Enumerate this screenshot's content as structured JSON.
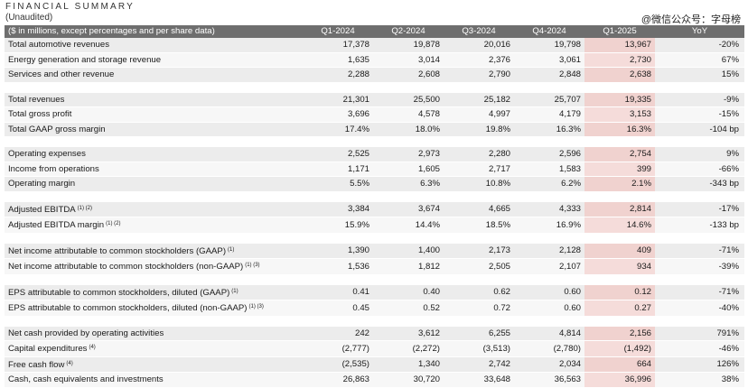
{
  "title": "FINANCIAL SUMMARY",
  "subtitle": "(Unaudited)",
  "watermark": "@微信公众号：字母榜",
  "header": [
    "($ in millions, except percentages and per share data)",
    "Q1-2024",
    "Q2-2024",
    "Q3-2024",
    "Q4-2024",
    "Q1-2025",
    "YoY"
  ],
  "groups": [
    [
      {
        "label": "Total automotive revenues",
        "sup": "",
        "values": [
          "17,378",
          "19,878",
          "20,016",
          "19,798",
          "13,967"
        ],
        "yoy": "-20%"
      },
      {
        "label": "Energy generation and storage revenue",
        "sup": "",
        "values": [
          "1,635",
          "3,014",
          "2,376",
          "3,061",
          "2,730"
        ],
        "yoy": "67%"
      },
      {
        "label": "Services and other revenue",
        "sup": "",
        "values": [
          "2,288",
          "2,608",
          "2,790",
          "2,848",
          "2,638"
        ],
        "yoy": "15%"
      }
    ],
    [
      {
        "label": "Total revenues",
        "sup": "",
        "values": [
          "21,301",
          "25,500",
          "25,182",
          "25,707",
          "19,335"
        ],
        "yoy": "-9%"
      },
      {
        "label": "Total gross profit",
        "sup": "",
        "values": [
          "3,696",
          "4,578",
          "4,997",
          "4,179",
          "3,153"
        ],
        "yoy": "-15%"
      },
      {
        "label": "Total GAAP gross margin",
        "sup": "",
        "values": [
          "17.4%",
          "18.0%",
          "19.8%",
          "16.3%",
          "16.3%"
        ],
        "yoy": "-104 bp"
      }
    ],
    [
      {
        "label": "Operating expenses",
        "sup": "",
        "values": [
          "2,525",
          "2,973",
          "2,280",
          "2,596",
          "2,754"
        ],
        "yoy": "9%"
      },
      {
        "label": "Income from operations",
        "sup": "",
        "values": [
          "1,171",
          "1,605",
          "2,717",
          "1,583",
          "399"
        ],
        "yoy": "-66%"
      },
      {
        "label": "Operating margin",
        "sup": "",
        "values": [
          "5.5%",
          "6.3%",
          "10.8%",
          "6.2%",
          "2.1%"
        ],
        "yoy": "-343 bp"
      }
    ],
    [
      {
        "label": "Adjusted EBITDA",
        "sup": "(1) (2)",
        "values": [
          "3,384",
          "3,674",
          "4,665",
          "4,333",
          "2,814"
        ],
        "yoy": "-17%"
      },
      {
        "label": "Adjusted EBITDA margin",
        "sup": "(1) (2)",
        "values": [
          "15.9%",
          "14.4%",
          "18.5%",
          "16.9%",
          "14.6%"
        ],
        "yoy": "-133 bp"
      }
    ],
    [
      {
        "label": "Net income attributable to common stockholders (GAAP)",
        "sup": "(1)",
        "values": [
          "1,390",
          "1,400",
          "2,173",
          "2,128",
          "409"
        ],
        "yoy": "-71%"
      },
      {
        "label": "Net income attributable to common stockholders (non-GAAP)",
        "sup": "(1) (3)",
        "values": [
          "1,536",
          "1,812",
          "2,505",
          "2,107",
          "934"
        ],
        "yoy": "-39%"
      }
    ],
    [
      {
        "label": "EPS attributable to common stockholders, diluted (GAAP)",
        "sup": "(1)",
        "values": [
          "0.41",
          "0.40",
          "0.62",
          "0.60",
          "0.12"
        ],
        "yoy": "-71%"
      },
      {
        "label": "EPS attributable to common stockholders, diluted (non-GAAP)",
        "sup": "(1) (3)",
        "values": [
          "0.45",
          "0.52",
          "0.72",
          "0.60",
          "0.27"
        ],
        "yoy": "-40%"
      }
    ],
    [
      {
        "label": "Net cash provided by operating activities",
        "sup": "",
        "values": [
          "242",
          "3,612",
          "6,255",
          "4,814",
          "2,156"
        ],
        "yoy": "791%"
      },
      {
        "label": "Capital expenditures",
        "sup": "(4)",
        "values": [
          "(2,777)",
          "(2,272)",
          "(3,513)",
          "(2,780)",
          "(1,492)"
        ],
        "yoy": "-46%"
      },
      {
        "label": "Free cash flow",
        "sup": "(4)",
        "values": [
          "(2,535)",
          "1,340",
          "2,742",
          "2,034",
          "664"
        ],
        "yoy": "126%"
      },
      {
        "label": "Cash, cash equivalents and investments",
        "sup": "",
        "values": [
          "26,863",
          "30,720",
          "33,648",
          "36,563",
          "36,996"
        ],
        "yoy": "38%"
      }
    ]
  ]
}
